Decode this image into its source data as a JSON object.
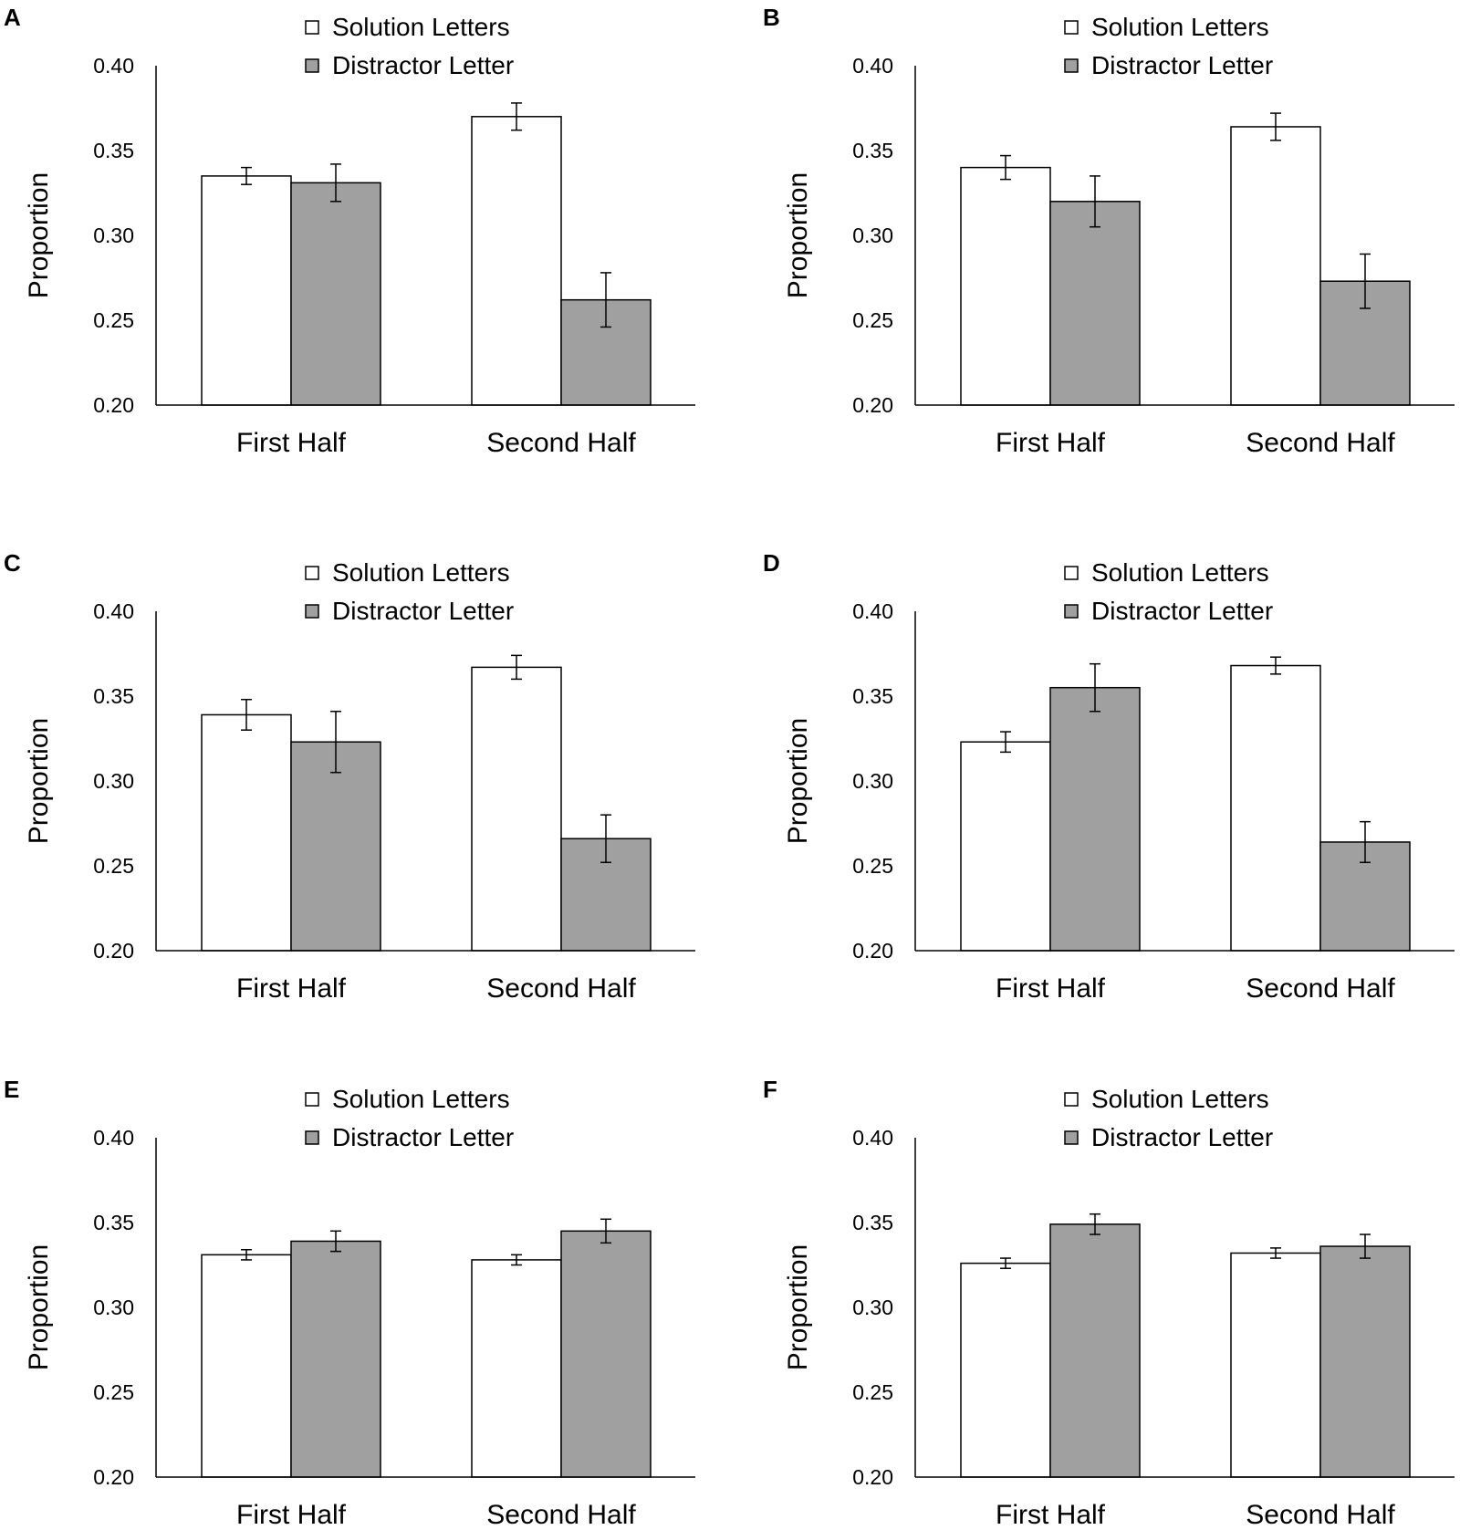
{
  "figure": {
    "background": "#ffffff"
  },
  "colors": {
    "solution": "#ffffff",
    "distractor": "#a0a0a0",
    "stroke": "#000000"
  },
  "chart_data": [
    {
      "panel": "A",
      "type": "bar",
      "categories": [
        "First Half",
        "Second Half"
      ],
      "series": [
        {
          "name": "Solution Letters",
          "values": [
            0.335,
            0.37
          ],
          "errors": [
            0.005,
            0.008
          ]
        },
        {
          "name": "Distractor Letter",
          "values": [
            0.331,
            0.262
          ],
          "errors": [
            0.011,
            0.016
          ]
        }
      ],
      "ylabel": "Proportion",
      "ylim": [
        0.2,
        0.4
      ],
      "yticks": [
        "0.20",
        "0.25",
        "0.30",
        "0.35",
        "0.40"
      ],
      "legend": "top-center"
    },
    {
      "panel": "B",
      "type": "bar",
      "categories": [
        "First Half",
        "Second Half"
      ],
      "series": [
        {
          "name": "Solution Letters",
          "values": [
            0.34,
            0.364
          ],
          "errors": [
            0.007,
            0.008
          ]
        },
        {
          "name": "Distractor Letter",
          "values": [
            0.32,
            0.273
          ],
          "errors": [
            0.015,
            0.016
          ]
        }
      ],
      "ylabel": "Proportion",
      "ylim": [
        0.2,
        0.4
      ],
      "yticks": [
        "0.20",
        "0.25",
        "0.30",
        "0.35",
        "0.40"
      ],
      "legend": "top-center"
    },
    {
      "panel": "C",
      "type": "bar",
      "categories": [
        "First Half",
        "Second Half"
      ],
      "series": [
        {
          "name": "Solution Letters",
          "values": [
            0.339,
            0.367
          ],
          "errors": [
            0.009,
            0.007
          ]
        },
        {
          "name": "Distractor Letter",
          "values": [
            0.323,
            0.266
          ],
          "errors": [
            0.018,
            0.014
          ]
        }
      ],
      "ylabel": "Proportion",
      "ylim": [
        0.2,
        0.4
      ],
      "yticks": [
        "0.20",
        "0.25",
        "0.30",
        "0.35",
        "0.40"
      ],
      "legend": "top-center"
    },
    {
      "panel": "D",
      "type": "bar",
      "categories": [
        "First Half",
        "Second Half"
      ],
      "series": [
        {
          "name": "Solution Letters",
          "values": [
            0.323,
            0.368
          ],
          "errors": [
            0.006,
            0.005
          ]
        },
        {
          "name": "Distractor Letter",
          "values": [
            0.355,
            0.264
          ],
          "errors": [
            0.014,
            0.012
          ]
        }
      ],
      "ylabel": "Proportion",
      "ylim": [
        0.2,
        0.4
      ],
      "yticks": [
        "0.20",
        "0.25",
        "0.30",
        "0.35",
        "0.40"
      ],
      "legend": "top-center"
    },
    {
      "panel": "E",
      "type": "bar",
      "categories": [
        "First Half",
        "Second Half"
      ],
      "series": [
        {
          "name": "Solution Letters",
          "values": [
            0.331,
            0.328
          ],
          "errors": [
            0.003,
            0.003
          ]
        },
        {
          "name": "Distractor Letter",
          "values": [
            0.339,
            0.345
          ],
          "errors": [
            0.006,
            0.007
          ]
        }
      ],
      "ylabel": "Proportion",
      "ylim": [
        0.2,
        0.4
      ],
      "yticks": [
        "0.20",
        "0.25",
        "0.30",
        "0.35",
        "0.40"
      ],
      "legend": "top-center"
    },
    {
      "panel": "F",
      "type": "bar",
      "categories": [
        "First Half",
        "Second Half"
      ],
      "series": [
        {
          "name": "Solution Letters",
          "values": [
            0.326,
            0.332
          ],
          "errors": [
            0.003,
            0.003
          ]
        },
        {
          "name": "Distractor Letter",
          "values": [
            0.349,
            0.336
          ],
          "errors": [
            0.006,
            0.007
          ]
        }
      ],
      "ylabel": "Proportion",
      "ylim": [
        0.2,
        0.4
      ],
      "yticks": [
        "0.20",
        "0.25",
        "0.30",
        "0.35",
        "0.40"
      ],
      "legend": "top-center"
    }
  ]
}
